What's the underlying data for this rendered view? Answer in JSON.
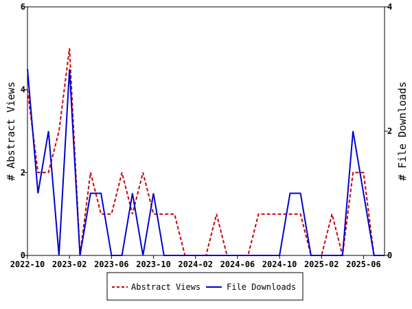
{
  "chart_data": {
    "type": "line",
    "x": [
      "2022-10",
      "2022-11",
      "2022-12",
      "2023-01",
      "2023-02",
      "2023-03",
      "2023-04",
      "2023-05",
      "2023-06",
      "2023-07",
      "2023-08",
      "2023-09",
      "2023-10",
      "2023-11",
      "2023-12",
      "2024-01",
      "2024-02",
      "2024-03",
      "2024-04",
      "2024-05",
      "2024-06",
      "2024-07",
      "2024-08",
      "2024-09",
      "2024-10",
      "2024-11",
      "2024-12",
      "2025-01",
      "2025-02",
      "2025-03",
      "2025-04",
      "2025-05",
      "2025-06",
      "2025-07",
      "2025-08"
    ],
    "x_ticks": [
      "2022-10",
      "2023-02",
      "2023-06",
      "2023-10",
      "2024-02",
      "2024-06",
      "2024-10",
      "2025-02",
      "2025-06"
    ],
    "series": [
      {
        "name": "Abstract Views",
        "axis": "left",
        "color": "#cc0000",
        "style": "dashed",
        "values": [
          4,
          2,
          2,
          3,
          5,
          0,
          2,
          1,
          1,
          2,
          1,
          2,
          1,
          1,
          1,
          0,
          0,
          0,
          1,
          0,
          0,
          0,
          1,
          1,
          1,
          1,
          1,
          0,
          0,
          1,
          0,
          2,
          2,
          0,
          0
        ]
      },
      {
        "name": "File Downloads",
        "axis": "right",
        "color": "#0000cc",
        "style": "solid",
        "values": [
          3,
          1,
          2,
          0,
          3,
          0,
          1,
          1,
          0,
          0,
          1,
          0,
          1,
          0,
          0,
          0,
          0,
          0,
          0,
          0,
          0,
          0,
          0,
          0,
          0,
          1,
          1,
          0,
          0,
          0,
          0,
          2,
          1,
          0,
          0
        ]
      }
    ],
    "ylabel_left": "# Abstract Views",
    "ylabel_right": "# File Downloads",
    "ylim_left": [
      0,
      6
    ],
    "yticks_left": [
      "0",
      "2",
      "4",
      "6"
    ],
    "ylim_right": [
      0,
      4
    ],
    "yticks_right": [
      "0",
      "2",
      "4"
    ],
    "legend_position": "bottom",
    "grid": false
  }
}
